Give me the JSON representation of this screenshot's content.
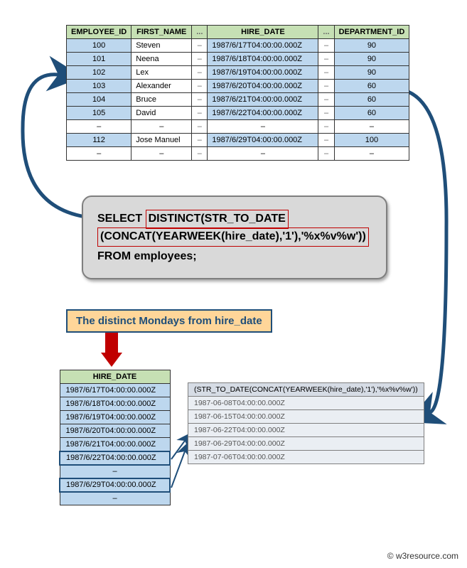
{
  "mainTable": {
    "headers": {
      "eid": "EMPLOYEE_ID",
      "fn": "FIRST_NAME",
      "el": "...",
      "hd": "HIRE_DATE",
      "did": "DEPARTMENT_ID"
    },
    "rows": [
      {
        "eid": "100",
        "fn": "Steven",
        "hd": "1987/6/17T04:00:00.000Z",
        "did": "90"
      },
      {
        "eid": "101",
        "fn": "Neena",
        "hd": "1987/6/18T04:00:00.000Z",
        "did": "90"
      },
      {
        "eid": "102",
        "fn": "Lex",
        "hd": "1987/6/19T04:00:00.000Z",
        "did": "90"
      },
      {
        "eid": "103",
        "fn": "Alexander",
        "hd": "1987/6/20T04:00:00.000Z",
        "did": "60"
      },
      {
        "eid": "104",
        "fn": "Bruce",
        "hd": "1987/6/21T04:00:00.000Z",
        "did": "60"
      },
      {
        "eid": "105",
        "fn": "David",
        "hd": "1987/6/22T04:00:00.000Z",
        "did": "60"
      },
      {
        "eid": "–",
        "fn": "–",
        "hd": "–",
        "did": "–",
        "dash": true
      },
      {
        "eid": "112",
        "fn": "Jose Manuel",
        "hd": "1987/6/29T04:00:00.000Z",
        "did": "100"
      },
      {
        "eid": "–",
        "fn": "–",
        "hd": "–",
        "did": "–",
        "dash": true
      }
    ]
  },
  "sql": {
    "pre": "SELECT ",
    "hl1": "DISTINCT(STR_TO_DATE",
    "hl2": "(CONCAT(YEARWEEK(hire_date),'1'),'%x%v%w'))",
    "post": "FROM employees;"
  },
  "label": "The distinct Mondays from hire_date",
  "hireTable": {
    "header": "HIRE_DATE",
    "rows": [
      {
        "v": "1987/6/17T04:00:00.000Z"
      },
      {
        "v": "1987/6/18T04:00:00.000Z"
      },
      {
        "v": "1987/6/19T04:00:00.000Z"
      },
      {
        "v": "1987/6/20T04:00:00.000Z"
      },
      {
        "v": "1987/6/21T04:00:00.000Z"
      },
      {
        "v": "1987/6/22T04:00:00.000Z",
        "bold": true
      },
      {
        "v": "–",
        "dash": true
      },
      {
        "v": "1987/6/29T04:00:00.000Z",
        "bold": true
      },
      {
        "v": "–",
        "dash": true
      }
    ]
  },
  "resultTable": {
    "header": "(STR_TO_DATE(CONCAT(YEARWEEK(hire_date),'1'),'%x%v%w'))",
    "rows": [
      "1987-06-08T04:00:00.000Z",
      "1987-06-15T04:00:00.000Z",
      "1987-06-22T04:00:00.000Z",
      "1987-06-29T04:00:00.000Z",
      "1987-07-06T04:00:00.000Z"
    ]
  },
  "credit": "© w3resource.com",
  "colors": {
    "arrow": "#1f4e79"
  }
}
